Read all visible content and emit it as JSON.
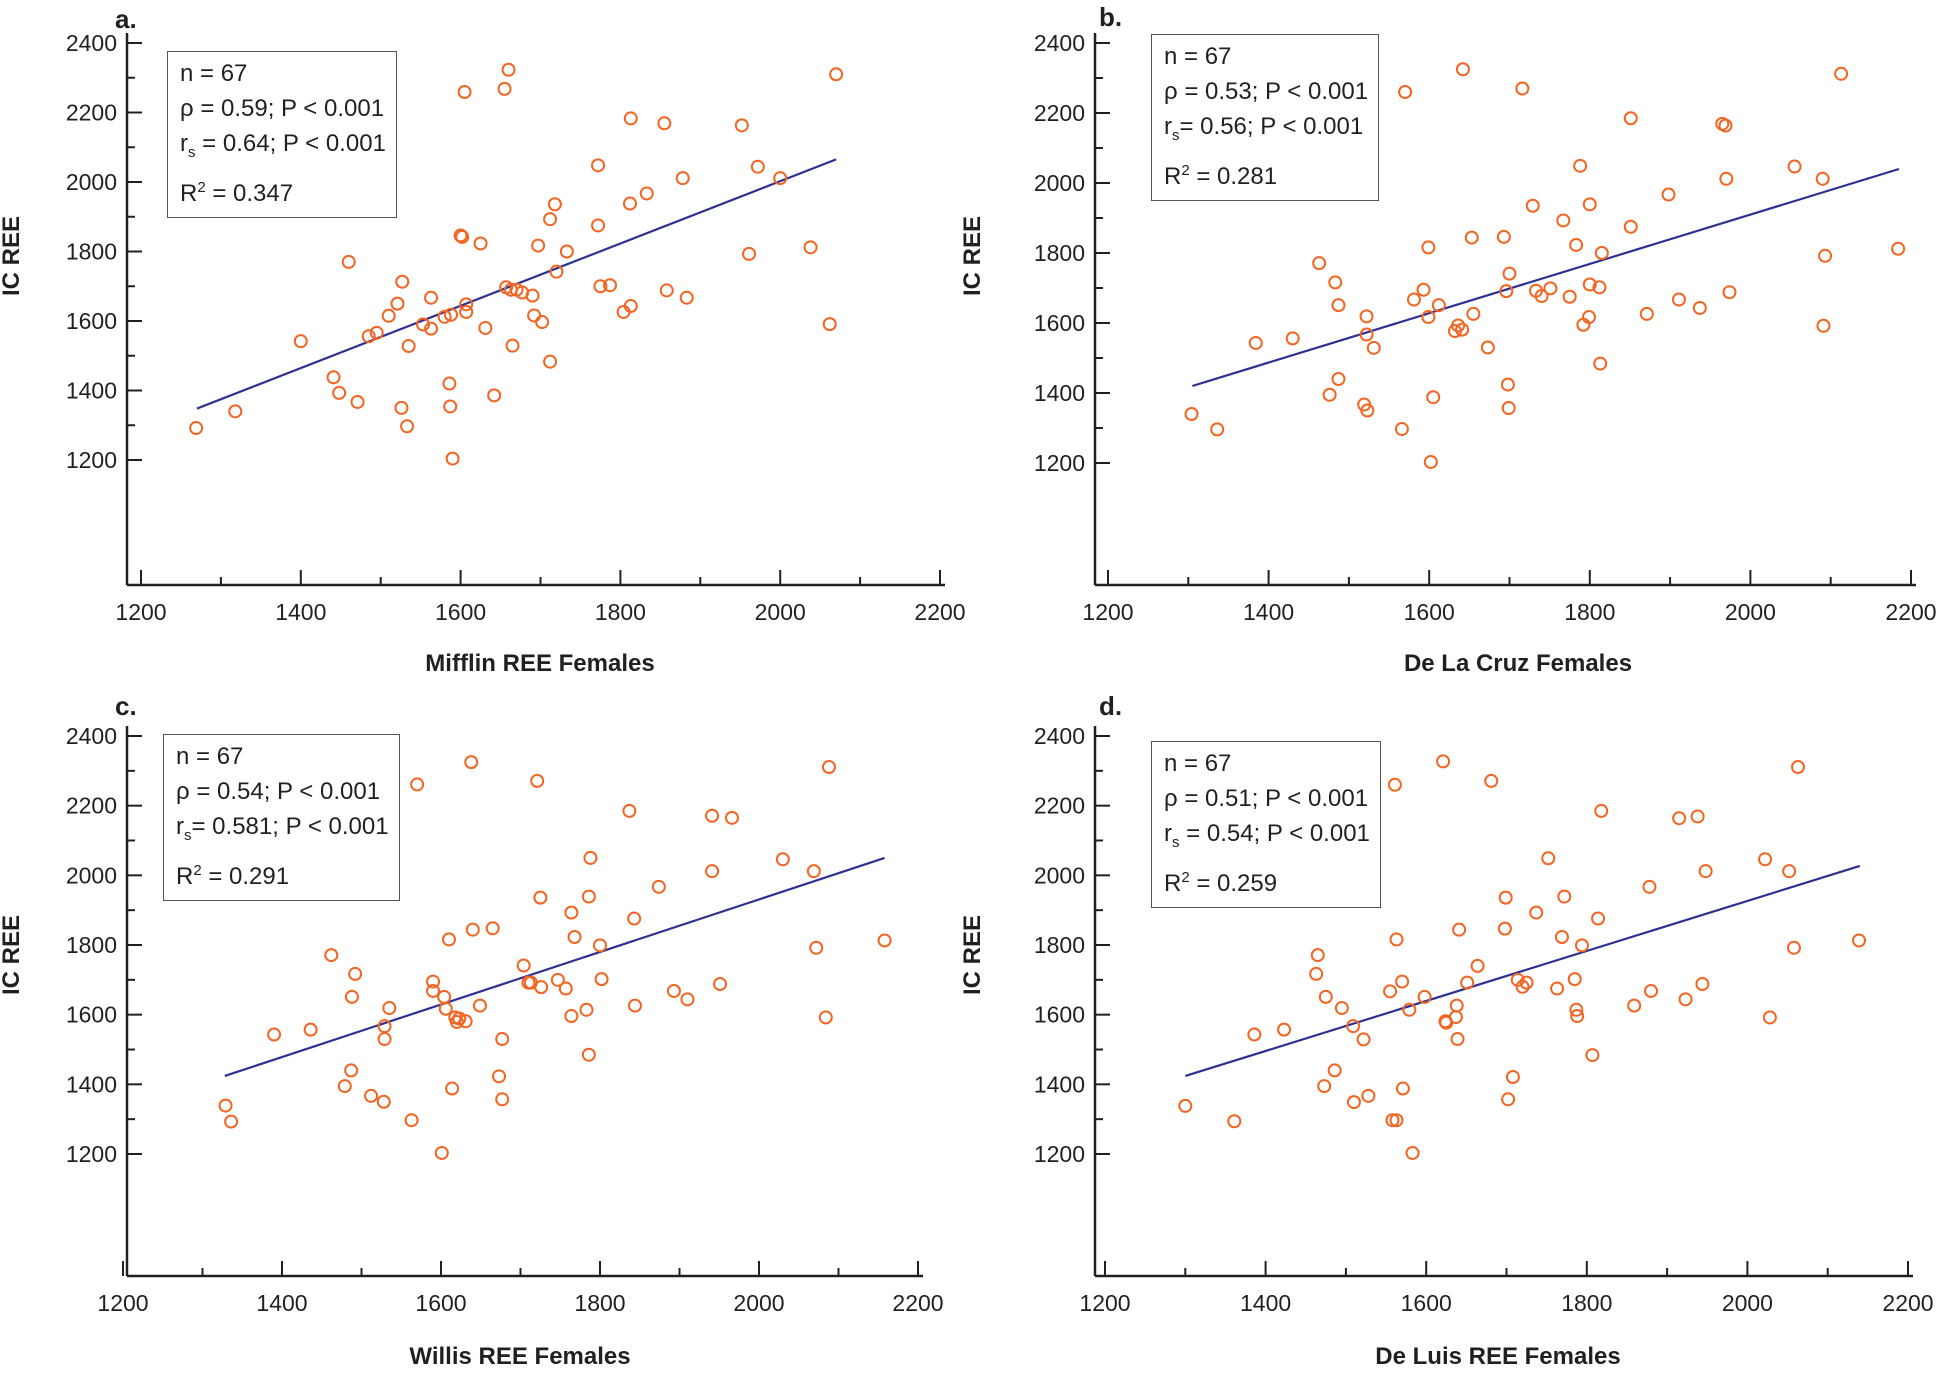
{
  "figure": {
    "y_axis_label": "IC REE",
    "marker_color": "#f26522",
    "line_color": "#2e3192",
    "axis_color": "#231f20"
  },
  "chart_data": [
    {
      "panel": "a.",
      "type": "scatter",
      "title": "",
      "xlabel": "Mifflin REE Females",
      "ylabel": "IC REE",
      "xlim": [
        1200,
        2200
      ],
      "ylim": [
        1200,
        2400
      ],
      "xticks": [
        1200,
        1400,
        1600,
        1800,
        2000,
        2200
      ],
      "yticks": [
        1200,
        1400,
        1600,
        1800,
        2000,
        2200,
        2400
      ],
      "grid": false,
      "stats": {
        "n": "n = 67",
        "rho": "ρ = 0.59; P < 0.001",
        "rs_value": " = 0.64; P < 0.001",
        "r2_value": " = 0.347"
      },
      "fit_line": {
        "x": [
          1270,
          2070
        ],
        "y": [
          1348,
          2065
        ]
      },
      "points": [
        [
          1269,
          1292
        ],
        [
          1318,
          1340
        ],
        [
          1400,
          1542
        ],
        [
          1441,
          1438
        ],
        [
          1448,
          1393
        ],
        [
          1471,
          1367
        ],
        [
          1485,
          1556
        ],
        [
          1495,
          1566
        ],
        [
          1510,
          1615
        ],
        [
          1521,
          1650
        ],
        [
          1527,
          1713
        ],
        [
          1526,
          1350
        ],
        [
          1533,
          1297
        ],
        [
          1535,
          1528
        ],
        [
          1553,
          1590
        ],
        [
          1563,
          1578
        ],
        [
          1563,
          1667
        ],
        [
          1460,
          1770
        ],
        [
          1586,
          1420
        ],
        [
          1587,
          1354
        ],
        [
          1590,
          1204
        ],
        [
          1588,
          1618
        ],
        [
          1600,
          1846
        ],
        [
          1602,
          1842
        ],
        [
          1607,
          1648
        ],
        [
          1607,
          1626
        ],
        [
          1625,
          1823
        ],
        [
          1631,
          1580
        ],
        [
          1605,
          2259
        ],
        [
          1655,
          2268
        ],
        [
          1660,
          2323
        ],
        [
          1642,
          1386
        ],
        [
          1657,
          1697
        ],
        [
          1663,
          1690
        ],
        [
          1670,
          1690
        ],
        [
          1677,
          1682
        ],
        [
          1690,
          1673
        ],
        [
          1692,
          1616
        ],
        [
          1697,
          1817
        ],
        [
          1702,
          1597
        ],
        [
          1665,
          1529
        ],
        [
          1712,
          1483
        ],
        [
          1712,
          1893
        ],
        [
          1718,
          1936
        ],
        [
          1720,
          1742
        ],
        [
          1733,
          1800
        ],
        [
          1772,
          2048
        ],
        [
          1772,
          1875
        ],
        [
          1775,
          1700
        ],
        [
          1787,
          1703
        ],
        [
          1804,
          1626
        ],
        [
          1813,
          1643
        ],
        [
          1812,
          1938
        ],
        [
          1813,
          2183
        ],
        [
          1833,
          1967
        ],
        [
          1855,
          2169
        ],
        [
          1858,
          1688
        ],
        [
          1878,
          2011
        ],
        [
          1883,
          1667
        ],
        [
          1952,
          2163
        ],
        [
          1961,
          1793
        ],
        [
          1972,
          2044
        ],
        [
          2000,
          2011
        ],
        [
          2038,
          1812
        ],
        [
          2062,
          1591
        ],
        [
          2070,
          2310
        ],
        [
          1580,
          1612
        ]
      ]
    },
    {
      "panel": "b.",
      "type": "scatter",
      "title": "",
      "xlabel": "De La Cruz Females",
      "ylabel": "IC REE",
      "xlim": [
        1200,
        2200
      ],
      "ylim": [
        1200,
        2400
      ],
      "xticks": [
        1200,
        1400,
        1600,
        1800,
        2000,
        2200
      ],
      "yticks": [
        1200,
        1400,
        1600,
        1800,
        2000,
        2200,
        2400
      ],
      "grid": false,
      "stats": {
        "n": "n = 67",
        "rho": "ρ = 0.53; P < 0.001",
        "rs_value": "= 0.56; P < 0.001",
        "r2_value": " = 0.281"
      },
      "fit_line": {
        "x": [
          1305,
          2185
        ],
        "y": [
          1420,
          2040
        ]
      },
      "points": [
        [
          1304,
          1340
        ],
        [
          1336,
          1296
        ],
        [
          1384,
          1543
        ],
        [
          1430,
          1556
        ],
        [
          1463,
          1771
        ],
        [
          1483,
          1716
        ],
        [
          1487,
          1651
        ],
        [
          1487,
          1440
        ],
        [
          1476,
          1395
        ],
        [
          1522,
          1619
        ],
        [
          1522,
          1567
        ],
        [
          1531,
          1529
        ],
        [
          1519,
          1367
        ],
        [
          1523,
          1350
        ],
        [
          1566,
          1297
        ],
        [
          1570,
          2260
        ],
        [
          1581,
          1667
        ],
        [
          1593,
          1695
        ],
        [
          1599,
          1617
        ],
        [
          1599,
          1816
        ],
        [
          1605,
          1388
        ],
        [
          1602,
          1203
        ],
        [
          1612,
          1651
        ],
        [
          1632,
          1577
        ],
        [
          1636,
          1593
        ],
        [
          1641,
          1581
        ],
        [
          1642,
          2325
        ],
        [
          1655,
          1626
        ],
        [
          1653,
          1844
        ],
        [
          1673,
          1530
        ],
        [
          1693,
          1846
        ],
        [
          1696,
          1691
        ],
        [
          1700,
          1741
        ],
        [
          1698,
          1424
        ],
        [
          1699,
          1357
        ],
        [
          1716,
          2270
        ],
        [
          1729,
          1935
        ],
        [
          1733,
          1692
        ],
        [
          1740,
          1677
        ],
        [
          1751,
          1699
        ],
        [
          1767,
          1893
        ],
        [
          1775,
          1675
        ],
        [
          1783,
          1823
        ],
        [
          1788,
          2049
        ],
        [
          1792,
          1595
        ],
        [
          1799,
          1617
        ],
        [
          1800,
          1939
        ],
        [
          1800,
          1710
        ],
        [
          1812,
          1702
        ],
        [
          1815,
          1800
        ],
        [
          1813,
          1484
        ],
        [
          1851,
          2185
        ],
        [
          1851,
          1875
        ],
        [
          1871,
          1626
        ],
        [
          1898,
          1967
        ],
        [
          1911,
          1667
        ],
        [
          1937,
          1643
        ],
        [
          1965,
          2169
        ],
        [
          1969,
          2164
        ],
        [
          1970,
          2012
        ],
        [
          1974,
          1688
        ],
        [
          2055,
          2047
        ],
        [
          2090,
          2012
        ],
        [
          2091,
          1592
        ],
        [
          2093,
          1792
        ],
        [
          2113,
          2312
        ],
        [
          2184,
          1812
        ]
      ]
    },
    {
      "panel": "c.",
      "type": "scatter",
      "title": "",
      "xlabel": "Willis REE Females",
      "ylabel": "IC REE",
      "xlim": [
        1200,
        2200
      ],
      "ylim": [
        1200,
        2400
      ],
      "xticks": [
        1200,
        1400,
        1600,
        1800,
        2000,
        2200
      ],
      "yticks": [
        1200,
        1400,
        1600,
        1800,
        2000,
        2200,
        2400
      ],
      "grid": false,
      "stats": {
        "n": "n = 67",
        "rho": "ρ = 0.54; P < 0.001",
        "rs_value": "= 0.581; P < 0.001",
        "r2_value": " = 0.291"
      },
      "fit_line": {
        "x": [
          1328,
          2158
        ],
        "y": [
          1424,
          2050
        ]
      },
      "points": [
        [
          1329,
          1339
        ],
        [
          1336,
          1293
        ],
        [
          1390,
          1543
        ],
        [
          1436,
          1557
        ],
        [
          1462,
          1771
        ],
        [
          1479,
          1395
        ],
        [
          1487,
          1440
        ],
        [
          1488,
          1651
        ],
        [
          1492,
          1717
        ],
        [
          1512,
          1367
        ],
        [
          1528,
          1350
        ],
        [
          1529,
          1567
        ],
        [
          1529,
          1530
        ],
        [
          1535,
          1619
        ],
        [
          1563,
          1297
        ],
        [
          1570,
          2261
        ],
        [
          1590,
          1695
        ],
        [
          1590,
          1668
        ],
        [
          1601,
          1203
        ],
        [
          1604,
          1651
        ],
        [
          1606,
          1617
        ],
        [
          1610,
          1816
        ],
        [
          1614,
          1388
        ],
        [
          1618,
          1592
        ],
        [
          1620,
          1579
        ],
        [
          1631,
          1581
        ],
        [
          1638,
          2325
        ],
        [
          1640,
          1844
        ],
        [
          1649,
          1626
        ],
        [
          1665,
          1848
        ],
        [
          1673,
          1423
        ],
        [
          1677,
          1530
        ],
        [
          1677,
          1357
        ],
        [
          1704,
          1741
        ],
        [
          1710,
          1692
        ],
        [
          1713,
          1692
        ],
        [
          1721,
          2271
        ],
        [
          1725,
          1936
        ],
        [
          1726,
          1679
        ],
        [
          1747,
          1700
        ],
        [
          1757,
          1675
        ],
        [
          1764,
          1893
        ],
        [
          1764,
          1596
        ],
        [
          1768,
          1823
        ],
        [
          1783,
          1614
        ],
        [
          1786,
          1485
        ],
        [
          1786,
          1939
        ],
        [
          1788,
          2050
        ],
        [
          1800,
          1799
        ],
        [
          1802,
          1702
        ],
        [
          1837,
          2185
        ],
        [
          1843,
          1876
        ],
        [
          1844,
          1626
        ],
        [
          1874,
          1967
        ],
        [
          1893,
          1668
        ],
        [
          1910,
          1644
        ],
        [
          1941,
          2012
        ],
        [
          1941,
          2171
        ],
        [
          1951,
          1688
        ],
        [
          1966,
          2165
        ],
        [
          2030,
          2046
        ],
        [
          2069,
          2012
        ],
        [
          2072,
          1792
        ],
        [
          2084,
          1592
        ],
        [
          2088,
          2311
        ],
        [
          2158,
          1813
        ],
        [
          1623,
          1589
        ]
      ]
    },
    {
      "panel": "d.",
      "type": "scatter",
      "title": "",
      "xlabel": "De Luis REE Females",
      "ylabel": "IC REE",
      "xlim": [
        1200,
        2200
      ],
      "ylim": [
        1200,
        2400
      ],
      "xticks": [
        1200,
        1400,
        1600,
        1800,
        2000,
        2200
      ],
      "yticks": [
        1200,
        1400,
        1600,
        1800,
        2000,
        2200,
        2400
      ],
      "grid": false,
      "stats": {
        "n": "n = 67",
        "rho": "ρ = 0.51; P < 0.001",
        "rs_value": " = 0.54; P < 0.001",
        "r2_value": " = 0.259"
      },
      "fit_line": {
        "x": [
          1300,
          2140
        ],
        "y": [
          1424,
          2027
        ]
      },
      "points": [
        [
          1300,
          1338
        ],
        [
          1361,
          1294
        ],
        [
          1386,
          1543
        ],
        [
          1423,
          1557
        ],
        [
          1465,
          1771
        ],
        [
          1463,
          1717
        ],
        [
          1475,
          1651
        ],
        [
          1473,
          1395
        ],
        [
          1486,
          1440
        ],
        [
          1495,
          1619
        ],
        [
          1510,
          1349
        ],
        [
          1509,
          1567
        ],
        [
          1522,
          1529
        ],
        [
          1528,
          1367
        ],
        [
          1555,
          1667
        ],
        [
          1558,
          1297
        ],
        [
          1561,
          2260
        ],
        [
          1563,
          1816
        ],
        [
          1570,
          1695
        ],
        [
          1571,
          1388
        ],
        [
          1579,
          1614
        ],
        [
          1583,
          1203
        ],
        [
          1598,
          1651
        ],
        [
          1621,
          2327
        ],
        [
          1624,
          1581
        ],
        [
          1625,
          1577
        ],
        [
          1637,
          1593
        ],
        [
          1638,
          1626
        ],
        [
          1639,
          1530
        ],
        [
          1641,
          1844
        ],
        [
          1651,
          1692
        ],
        [
          1664,
          1740
        ],
        [
          1681,
          2271
        ],
        [
          1698,
          1847
        ],
        [
          1699,
          1936
        ],
        [
          1702,
          1357
        ],
        [
          1708,
          1421
        ],
        [
          1714,
          1700
        ],
        [
          1720,
          1680
        ],
        [
          1725,
          1692
        ],
        [
          1737,
          1893
        ],
        [
          1752,
          2049
        ],
        [
          1763,
          1675
        ],
        [
          1769,
          1823
        ],
        [
          1772,
          1939
        ],
        [
          1785,
          1702
        ],
        [
          1787,
          1614
        ],
        [
          1788,
          1596
        ],
        [
          1794,
          1799
        ],
        [
          1807,
          1484
        ],
        [
          1814,
          1876
        ],
        [
          1818,
          2185
        ],
        [
          1859,
          1626
        ],
        [
          1878,
          1967
        ],
        [
          1880,
          1668
        ],
        [
          1915,
          2164
        ],
        [
          1923,
          1644
        ],
        [
          1938,
          2169
        ],
        [
          1944,
          1688
        ],
        [
          1948,
          2012
        ],
        [
          2022,
          2046
        ],
        [
          2028,
          1592
        ],
        [
          2052,
          2012
        ],
        [
          2058,
          1792
        ],
        [
          2063,
          2311
        ],
        [
          2139,
          1813
        ],
        [
          1563,
          1297
        ]
      ]
    }
  ]
}
